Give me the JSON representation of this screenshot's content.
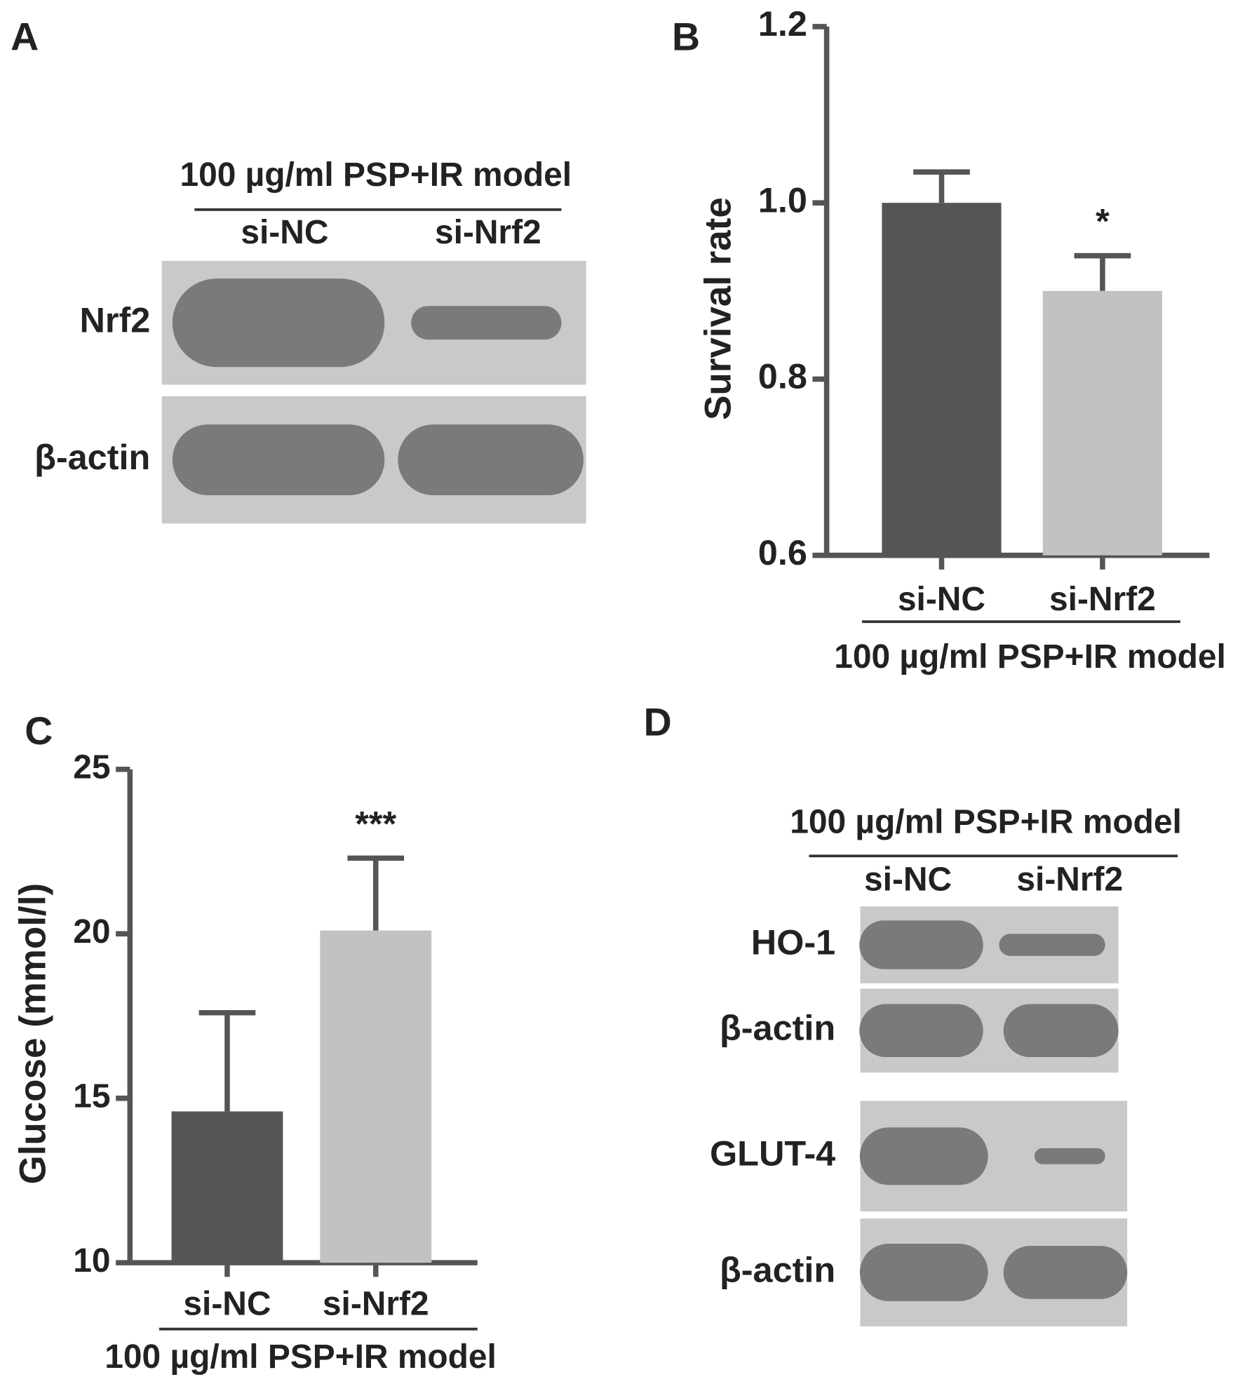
{
  "chart_data": [
    {
      "type": "bar",
      "panel": "B",
      "ylabel": "Survival rate",
      "categories": [
        "si-NC",
        "si-Nrf2"
      ],
      "values": [
        1.0,
        0.9
      ],
      "errors": [
        0.035,
        0.04
      ],
      "colors": [
        "#555555",
        "#c2c2c2"
      ],
      "ylim": [
        0.6,
        1.2
      ],
      "yticks": [
        0.6,
        0.8,
        {
          "value": 1.0,
          "label": "1.0"
        },
        1.2
      ],
      "annotations": [
        {
          "category_index": 1,
          "text": "*"
        }
      ],
      "group_label": "100 µg/ml PSP+IR model"
    },
    {
      "type": "bar",
      "panel": "C",
      "ylabel": "Glucose (mmol/l)",
      "categories": [
        "si-NC",
        "si-Nrf2"
      ],
      "values": [
        14.6,
        20.1
      ],
      "errors": [
        3.0,
        2.2
      ],
      "colors": [
        "#555555",
        "#c2c2c2"
      ],
      "ylim": [
        10,
        25
      ],
      "yticks": [
        10,
        15,
        20,
        25
      ],
      "annotations": [
        {
          "category_index": 1,
          "text": "***"
        }
      ],
      "group_label": "100 µg/ml PSP+IR model"
    }
  ],
  "blots": [
    {
      "panel": "A",
      "group_label": "100 µg/ml PSP+IR model",
      "lanes": [
        "si-NC",
        "si-Nrf2"
      ],
      "rows": [
        "Nrf2",
        "β-actin"
      ]
    },
    {
      "panel": "D",
      "group_label": "100 µg/ml PSP+IR model",
      "lanes": [
        "si-NC",
        "si-Nrf2"
      ],
      "rows": [
        "HO-1",
        "β-actin",
        "GLUT-4",
        "β-actin"
      ]
    }
  ]
}
